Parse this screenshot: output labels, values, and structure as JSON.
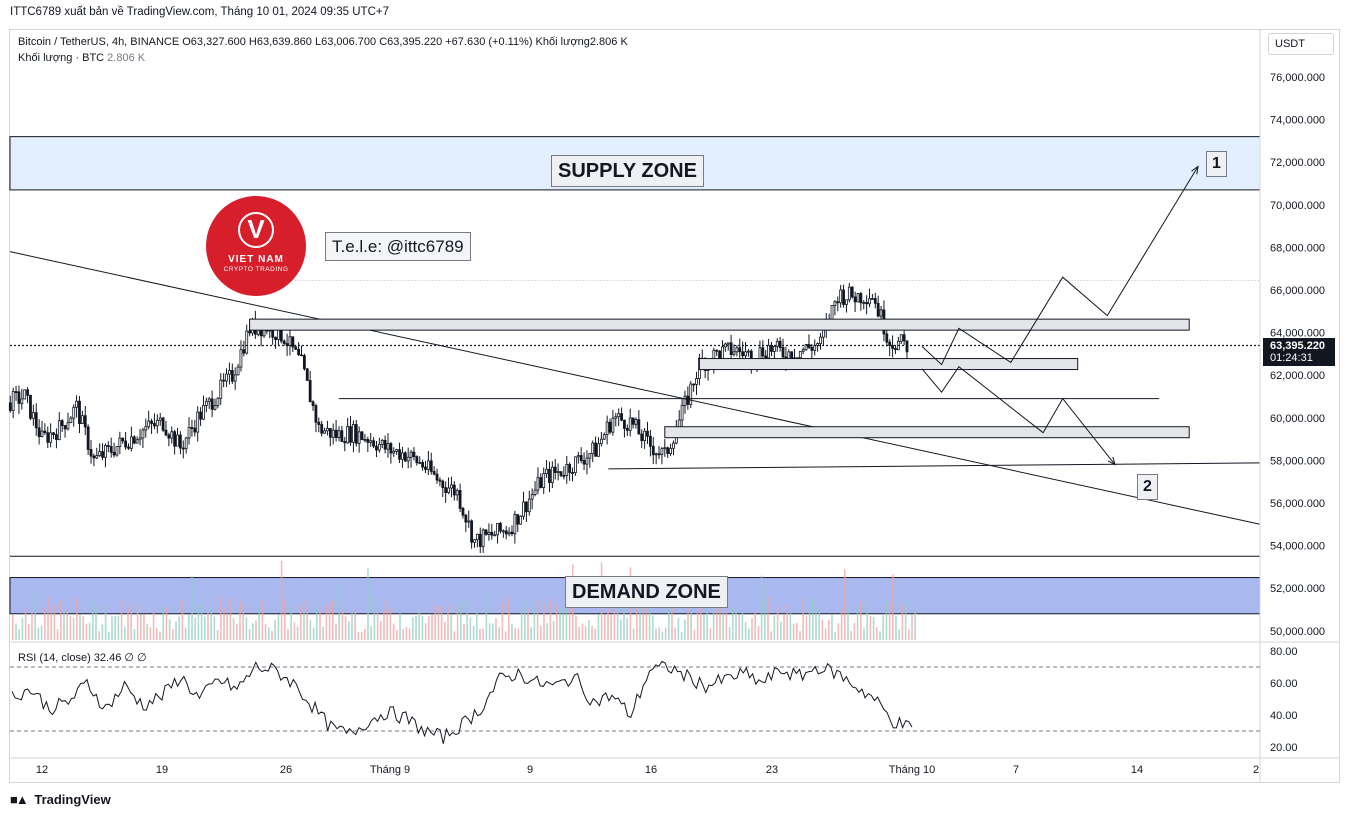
{
  "header": {
    "attribution": "ITTC6789 xuất bản về TradingView.com, Tháng 10 01, 2024 09:35 UTC+7"
  },
  "legend": {
    "line1": "Bitcoin / TetherUS, 4h, BINANCE  O63,327.600  H63,639.860  L63,006.700  C63,395.220  +67.630 (+0.11%)  Khối lượng2.806 K",
    "volume_label": "Khối lượng · BTC",
    "volume_value": "2.806 K"
  },
  "currency": "USDT",
  "last_price": {
    "price": "63,395.220",
    "countdown": "01:24:31"
  },
  "rsi": {
    "label": "RSI (14, close)",
    "value": "32.46",
    "extra": "∅ ∅"
  },
  "annotations": {
    "supply_zone": "SUPPLY ZONE",
    "demand_zone": "DEMAND ZONE",
    "telegram": "T.e.l.e: @ittc6789",
    "scenario_1": "1",
    "scenario_2": "2"
  },
  "logo": {
    "line1": "VIET NAM",
    "line2": "CRYPTO TRADING"
  },
  "footer": {
    "brand": "TradingView"
  },
  "chart_data": {
    "type": "candlestick",
    "symbol": "Bitcoin / TetherUS",
    "interval": "4h",
    "exchange": "BINANCE",
    "ohlc_last": {
      "open": 63327.6,
      "high": 63639.86,
      "low": 63006.7,
      "close": 63395.22,
      "change": 67.63,
      "change_pct": 0.11
    },
    "price_axis": {
      "ticks": [
        "76,000.000",
        "74,000.000",
        "72,000.000",
        "70,000.000",
        "68,000.000",
        "66,000.000",
        "64,000.000",
        "62,000.000",
        "60,000.000",
        "58,000.000",
        "56,000.000",
        "54,000.000",
        "52,000.000",
        "50,000.000"
      ],
      "tick_values": [
        76000,
        74000,
        72000,
        70000,
        68000,
        66000,
        64000,
        62000,
        60000,
        58000,
        56000,
        54000,
        52000,
        50000
      ]
    },
    "time_axis": {
      "labels": [
        "12",
        "19",
        "26",
        "Tháng 9",
        "9",
        "16",
        "23",
        "Tháng 10",
        "7",
        "14",
        "2"
      ]
    },
    "close_path": [
      [
        "08-10",
        60700
      ],
      [
        "08-11",
        61000
      ],
      [
        "08-12",
        59000
      ],
      [
        "08-13",
        59500
      ],
      [
        "08-14",
        60500
      ],
      [
        "08-15",
        58000
      ],
      [
        "08-16",
        58500
      ],
      [
        "08-17",
        59000
      ],
      [
        "08-18",
        59500
      ],
      [
        "08-19",
        59800
      ],
      [
        "08-20",
        58600
      ],
      [
        "08-21",
        60000
      ],
      [
        "08-22",
        61000
      ],
      [
        "08-23",
        62000
      ],
      [
        "08-24",
        64200
      ],
      [
        "08-25",
        64300
      ],
      [
        "08-26",
        63800
      ],
      [
        "08-27",
        62500
      ],
      [
        "08-28",
        59500
      ],
      [
        "08-29",
        59200
      ],
      [
        "08-30",
        59300
      ],
      [
        "08-31",
        59000
      ],
      [
        "09-01",
        58500
      ],
      [
        "09-02",
        58300
      ],
      [
        "09-03",
        57800
      ],
      [
        "09-04",
        57000
      ],
      [
        "09-05",
        56500
      ],
      [
        "09-06",
        54200
      ],
      [
        "09-07",
        54500
      ],
      [
        "09-08",
        54800
      ],
      [
        "09-09",
        56000
      ],
      [
        "09-10",
        57200
      ],
      [
        "09-11",
        57500
      ],
      [
        "09-12",
        58000
      ],
      [
        "09-13",
        58500
      ],
      [
        "09-14",
        60000
      ],
      [
        "09-15",
        59800
      ],
      [
        "09-16",
        58800
      ],
      [
        "09-17",
        58200
      ],
      [
        "09-18",
        60200
      ],
      [
        "09-19",
        62500
      ],
      [
        "09-20",
        63000
      ],
      [
        "09-21",
        63200
      ],
      [
        "09-22",
        62900
      ],
      [
        "09-23",
        63300
      ],
      [
        "09-24",
        63000
      ],
      [
        "09-25",
        63200
      ],
      [
        "09-26",
        63500
      ],
      [
        "09-27",
        65800
      ],
      [
        "09-28",
        65700
      ],
      [
        "09-29",
        65800
      ],
      [
        "09-30",
        63600
      ],
      [
        "10-01",
        63395
      ]
    ],
    "zones": {
      "supply": [
        70700,
        73200
      ],
      "demand": [
        50800,
        52500
      ],
      "demand_top_line": 53500
    },
    "horizontal_levels": [
      64350,
      62500,
      60900,
      59300,
      57600
    ],
    "trendline": {
      "from": [
        "08-09",
        67800
      ],
      "to": [
        "10-16",
        55000
      ]
    },
    "scenario_1_target": 71800,
    "scenario_2_target": 57800,
    "rsi_data": {
      "levels": [
        70,
        30
      ],
      "ticks": [
        "80.00",
        "60.00",
        "40.00",
        "20.00"
      ],
      "tick_values": [
        80,
        60,
        40,
        20
      ],
      "current": 32.46,
      "values": [
        52,
        56,
        44,
        48,
        60,
        44,
        58,
        46,
        52,
        64,
        50,
        62,
        56,
        70,
        68,
        60,
        46,
        32,
        28,
        36,
        42,
        38,
        30,
        26,
        34,
        44,
        62,
        66,
        60,
        58,
        64,
        48,
        52,
        40,
        68,
        70,
        64,
        58,
        62,
        66,
        60,
        68,
        64,
        70,
        66,
        58,
        50,
        36,
        32
      ]
    },
    "grid": false,
    "legend_position": "top-left"
  }
}
